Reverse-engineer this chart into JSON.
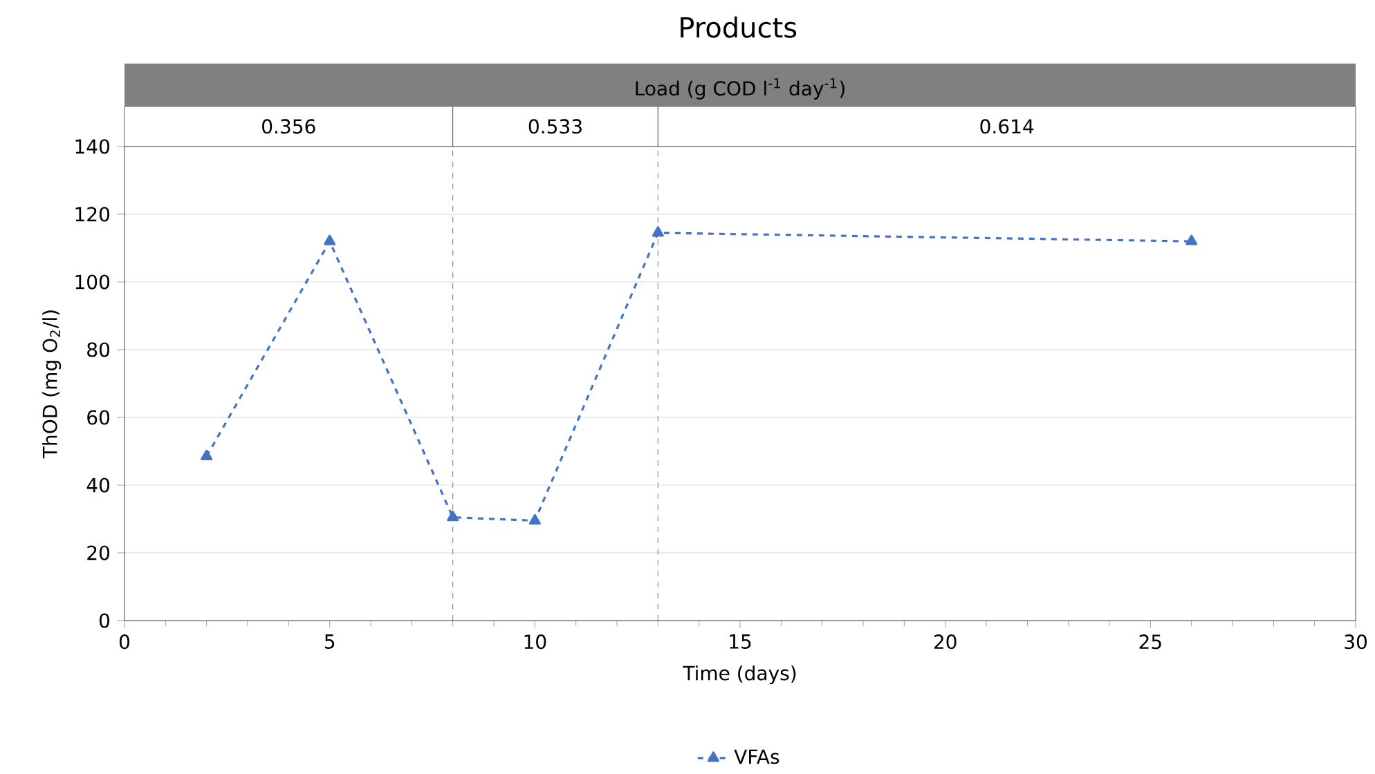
{
  "chart_data": {
    "type": "line",
    "title": "Products",
    "xlabel": "Time (days)",
    "ylabel": "ThOD (mg O$_{2}$/l)",
    "annotations": [
      "Load (g COD l$^{-1}$ day$^{-1}$)",
      "0.356",
      "0.533",
      "0.614"
    ],
    "ref_lines": [
      {
        "axis": "x",
        "value": 8,
        "color": "#7f7f7f",
        "line_style": "dashed"
      },
      {
        "axis": "x",
        "value": 13,
        "color": "#7f7f7f",
        "line_style": "dashed"
      }
    ],
    "x": [
      2,
      5,
      8,
      10,
      13,
      26
    ],
    "series": [
      {
        "name": "VFAs",
        "color": "#4472c4",
        "values": [
          48.5,
          112,
          30.5,
          29.5,
          114.5,
          112
        ]
      }
    ],
    "xlim": [
      0,
      30
    ],
    "xticks": [
      0,
      5,
      10,
      15,
      20,
      25,
      30
    ],
    "ylim": [
      0,
      140
    ],
    "yticks": [
      0,
      20,
      40,
      60,
      80,
      100,
      120,
      140
    ],
    "grid": "y",
    "legend": "bottom",
    "marker": "triangle",
    "line_style": "dashed"
  }
}
